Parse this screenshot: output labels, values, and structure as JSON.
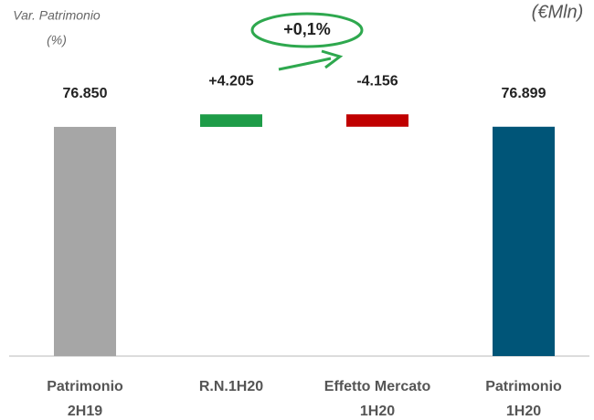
{
  "chart_data": {
    "type": "waterfall",
    "categories": [
      [
        "Patrimonio",
        "2H19"
      ],
      [
        "R.N.1H20"
      ],
      [
        "Effetto Mercato",
        "1H20"
      ],
      [
        "Patrimonio",
        "1H20"
      ]
    ],
    "values": [
      76850,
      4205,
      -4156,
      76899
    ],
    "value_labels": [
      "76.850",
      "+4.205",
      "-4.156",
      "76.899"
    ],
    "colors": [
      "#a6a6a6",
      "#1e9c48",
      "#c00000",
      "#005578"
    ],
    "ylim": [
      0,
      90000
    ],
    "annotations": {
      "var_label": [
        "Var. Patrimonio",
        "(%)"
      ],
      "unit": "(€Mln)",
      "change": "+0,1%"
    }
  }
}
